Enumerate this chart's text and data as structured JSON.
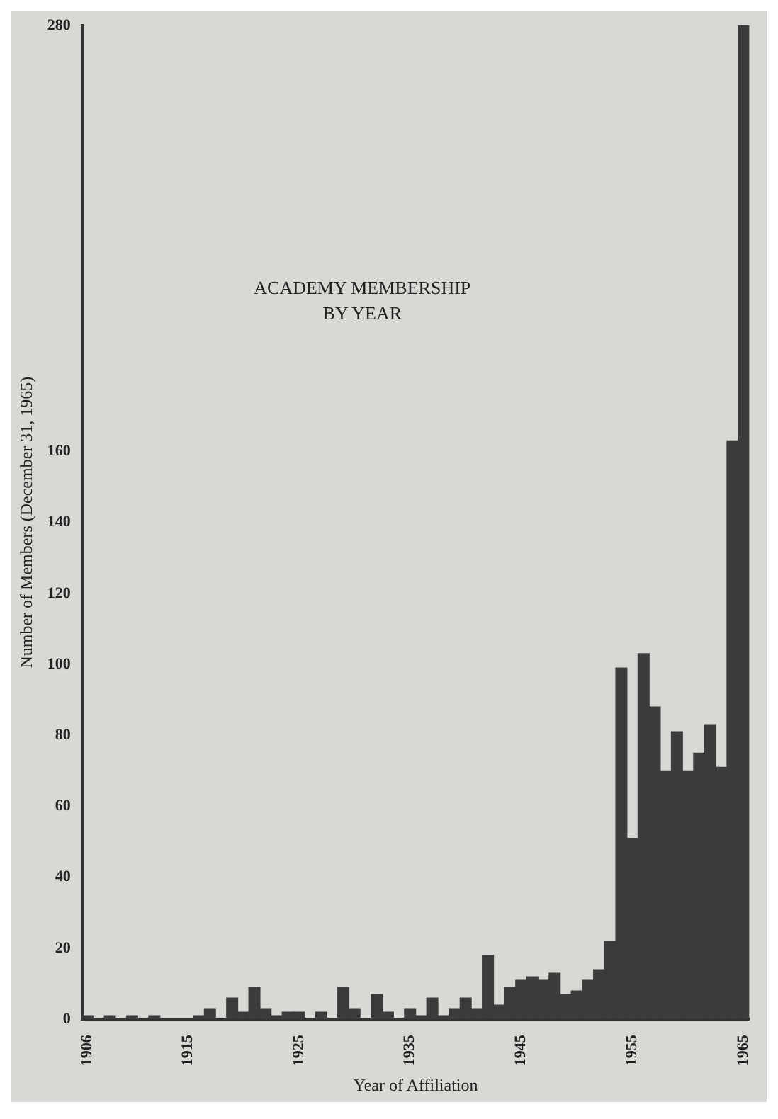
{
  "chart_data": {
    "type": "bar",
    "title": "ACADEMY MEMBERSHIP BY YEAR",
    "xlabel": "Year of Affiliation",
    "ylabel": "Number of Members (December 31, 1965)",
    "categories": [
      "1906",
      null,
      null,
      null,
      null,
      null,
      null,
      null,
      null,
      "1915",
      null,
      null,
      null,
      null,
      null,
      null,
      null,
      null,
      null,
      "1925",
      null,
      null,
      null,
      null,
      null,
      null,
      null,
      null,
      null,
      "1935",
      null,
      null,
      null,
      null,
      null,
      null,
      null,
      null,
      null,
      "1945",
      null,
      null,
      null,
      null,
      null,
      null,
      null,
      null,
      null,
      "1955",
      null,
      null,
      null,
      null,
      null,
      null,
      null,
      null,
      null,
      "1965"
    ],
    "values": [
      1,
      0,
      1,
      0,
      1,
      0,
      1,
      0,
      0,
      0,
      1,
      3,
      0,
      6,
      2,
      9,
      3,
      1,
      2,
      2,
      0,
      2,
      0,
      9,
      3,
      0,
      7,
      2,
      0,
      3,
      1,
      6,
      1,
      3,
      6,
      3,
      18,
      4,
      9,
      11,
      12,
      11,
      13,
      7,
      8,
      11,
      14,
      22,
      99,
      51,
      103,
      88,
      70,
      81,
      70,
      75,
      83,
      71,
      163,
      280
    ],
    "color": "#3b3b3b",
    "ylim": [
      0,
      280
    ],
    "yticks": [
      0,
      20,
      40,
      60,
      80,
      100,
      120,
      140,
      160,
      280
    ],
    "grid": false
  }
}
